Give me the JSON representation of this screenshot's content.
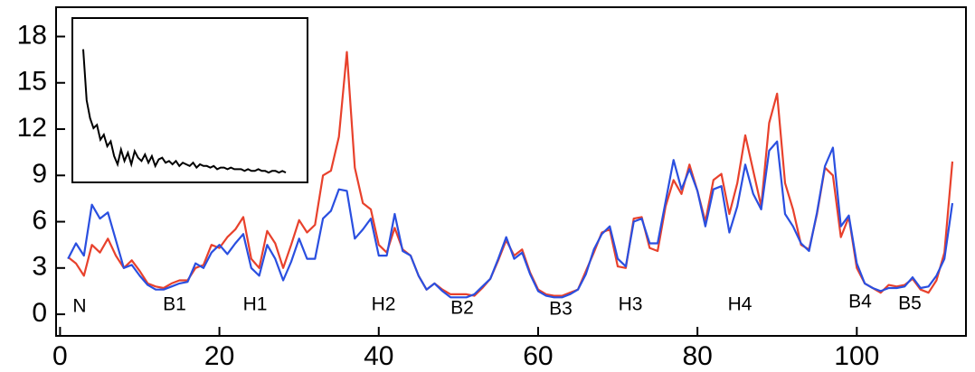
{
  "chart_data": [
    {
      "type": "line",
      "x": [
        1,
        2,
        3,
        4,
        5,
        6,
        7,
        8,
        9,
        10,
        11,
        12,
        13,
        14,
        15,
        16,
        17,
        18,
        19,
        20,
        21,
        22,
        23,
        24,
        25,
        26,
        27,
        28,
        29,
        30,
        31,
        32,
        33,
        34,
        35,
        36,
        37,
        38,
        39,
        40,
        41,
        42,
        43,
        44,
        45,
        46,
        47,
        48,
        49,
        50,
        51,
        52,
        53,
        54,
        55,
        56,
        57,
        58,
        59,
        60,
        61,
        62,
        63,
        64,
        65,
        66,
        67,
        68,
        69,
        70,
        71,
        72,
        73,
        74,
        75,
        76,
        77,
        78,
        79,
        80,
        81,
        82,
        83,
        84,
        85,
        86,
        87,
        88,
        89,
        90,
        91,
        92,
        93,
        94,
        95,
        96,
        97,
        98,
        99,
        100,
        101,
        102,
        103,
        104,
        105,
        106,
        107,
        108,
        109,
        110,
        111,
        112
      ],
      "series": [
        {
          "color": "#e8412c",
          "values": [
            3.7,
            3.3,
            2.5,
            4.5,
            4.0,
            4.9,
            3.8,
            3.0,
            3.5,
            2.8,
            2.0,
            1.8,
            1.7,
            2.0,
            2.2,
            2.2,
            3.0,
            3.2,
            4.5,
            4.3,
            5.0,
            5.5,
            6.3,
            3.6,
            3.0,
            5.4,
            4.6,
            3.0,
            4.5,
            6.1,
            5.3,
            5.8,
            9.0,
            9.3,
            11.5,
            17.0,
            9.5,
            7.2,
            6.8,
            4.5,
            4.0,
            5.6,
            4.2,
            3.8,
            2.5,
            1.6,
            2.0,
            1.6,
            1.3,
            1.3,
            1.3,
            1.2,
            1.7,
            2.3,
            3.5,
            4.8,
            3.8,
            4.2,
            2.7,
            1.6,
            1.3,
            1.2,
            1.2,
            1.4,
            1.6,
            2.8,
            4.0,
            5.3,
            5.5,
            3.1,
            3.0,
            6.2,
            6.3,
            4.3,
            4.1,
            7.0,
            8.7,
            7.8,
            9.7,
            8.0,
            6.0,
            8.7,
            9.1,
            6.5,
            8.5,
            11.6,
            9.3,
            7.0,
            12.4,
            14.3,
            8.5,
            6.8,
            4.5,
            4.2,
            6.5,
            9.5,
            9.0,
            5.0,
            6.3,
            3.0,
            2.0,
            1.7,
            1.4,
            1.9,
            1.8,
            1.9,
            2.3,
            1.6,
            1.4,
            2.2,
            4.0,
            9.9
          ]
        },
        {
          "color": "#2a4fe0",
          "values": [
            3.6,
            4.6,
            3.8,
            7.1,
            6.2,
            6.6,
            4.8,
            3.0,
            3.2,
            2.5,
            1.9,
            1.6,
            1.6,
            1.8,
            2.0,
            2.1,
            3.3,
            3.0,
            4.0,
            4.5,
            3.9,
            4.6,
            5.2,
            3.0,
            2.5,
            4.5,
            3.6,
            2.2,
            3.4,
            4.9,
            3.6,
            3.6,
            6.2,
            6.7,
            8.1,
            8.0,
            4.9,
            5.5,
            6.2,
            3.8,
            3.8,
            6.5,
            4.1,
            3.8,
            2.5,
            1.6,
            2.0,
            1.5,
            1.1,
            1.1,
            1.1,
            1.3,
            1.8,
            2.3,
            3.6,
            5.0,
            3.6,
            4.0,
            2.6,
            1.5,
            1.2,
            1.1,
            1.1,
            1.3,
            1.6,
            2.6,
            4.2,
            5.2,
            5.7,
            3.6,
            3.1,
            6.0,
            6.2,
            4.6,
            4.6,
            7.3,
            10.0,
            8.1,
            9.4,
            8.0,
            5.7,
            8.1,
            8.3,
            5.3,
            7.0,
            9.7,
            7.8,
            6.8,
            10.6,
            11.2,
            6.5,
            5.7,
            4.6,
            4.1,
            6.6,
            9.6,
            10.8,
            5.7,
            6.4,
            3.3,
            2.0,
            1.7,
            1.5,
            1.7,
            1.7,
            1.8,
            2.4,
            1.7,
            1.8,
            2.5,
            3.6,
            7.2
          ]
        }
      ],
      "xlim": [
        -0.5,
        113.7
      ],
      "xticks": [
        0,
        20,
        40,
        60,
        80,
        100
      ],
      "ylim": [
        -1.4,
        19.9
      ],
      "yticks": [
        0,
        3,
        6,
        9,
        12,
        15,
        18
      ],
      "annotations": [
        "N",
        "B1",
        "H1",
        "H2",
        "B2",
        "B3",
        "H3",
        "H4",
        "B4",
        "B5"
      ]
    },
    {
      "type": "line",
      "color": "#000000",
      "ylim": [
        0,
        10
      ],
      "values": [
        8.1,
        5.0,
        3.9,
        3.3,
        3.5,
        2.6,
        2.9,
        2.2,
        2.5,
        1.6,
        1.1,
        2.0,
        1.3,
        1.8,
        1.1,
        1.9,
        1.5,
        1.3,
        1.7,
        1.2,
        1.6,
        1.0,
        1.4,
        1.5,
        1.2,
        1.3,
        1.1,
        1.3,
        1.0,
        1.2,
        1.1,
        1.0,
        1.2,
        0.9,
        1.1,
        1.0,
        1.0,
        0.9,
        1.0,
        0.8,
        0.9,
        0.9,
        0.8,
        0.9,
        0.8,
        0.8,
        0.8,
        0.7,
        0.8,
        0.7,
        0.7,
        0.8,
        0.7,
        0.7,
        0.6,
        0.7,
        0.7,
        0.6,
        0.7,
        0.6
      ]
    }
  ]
}
